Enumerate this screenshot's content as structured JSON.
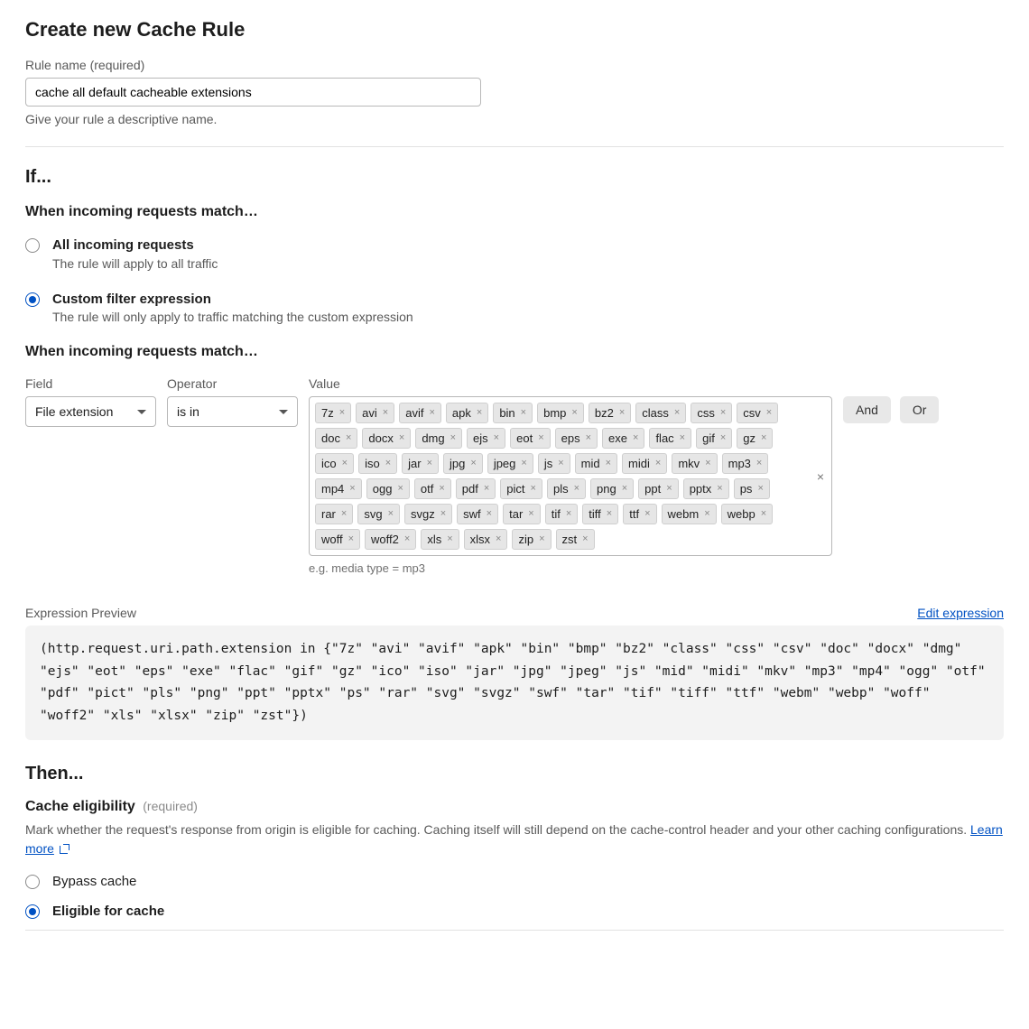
{
  "page": {
    "title": "Create new Cache Rule"
  },
  "rule_name": {
    "label": "Rule name (required)",
    "value": "cache all default cacheable extensions",
    "help": "Give your rule a descriptive name."
  },
  "if_section": {
    "title": "If...",
    "match_title": "When incoming requests match…",
    "options": {
      "all": {
        "label": "All incoming requests",
        "sub": "The rule will apply to all traffic",
        "checked": false
      },
      "custom": {
        "label": "Custom filter expression",
        "sub": "The rule will only apply to traffic matching the custom expression",
        "checked": true
      }
    }
  },
  "filter": {
    "match_title": "When incoming requests match…",
    "field_label": "Field",
    "operator_label": "Operator",
    "value_label": "Value",
    "field_value": "File extension",
    "operator_value": "is in",
    "tags": [
      "7z",
      "avi",
      "avif",
      "apk",
      "bin",
      "bmp",
      "bz2",
      "class",
      "css",
      "csv",
      "doc",
      "docx",
      "dmg",
      "ejs",
      "eot",
      "eps",
      "exe",
      "flac",
      "gif",
      "gz",
      "ico",
      "iso",
      "jar",
      "jpg",
      "jpeg",
      "js",
      "mid",
      "midi",
      "mkv",
      "mp3",
      "mp4",
      "ogg",
      "otf",
      "pdf",
      "pict",
      "pls",
      "png",
      "ppt",
      "pptx",
      "ps",
      "rar",
      "svg",
      "svgz",
      "swf",
      "tar",
      "tif",
      "tiff",
      "ttf",
      "webm",
      "webp",
      "woff",
      "woff2",
      "xls",
      "xlsx",
      "zip",
      "zst"
    ],
    "hint": "e.g. media type = mp3",
    "and_label": "And",
    "or_label": "Or"
  },
  "expression": {
    "label": "Expression Preview",
    "edit_label": "Edit expression",
    "text": "(http.request.uri.path.extension in {\"7z\" \"avi\" \"avif\" \"apk\" \"bin\" \"bmp\" \"bz2\" \"class\" \"css\" \"csv\" \"doc\" \"docx\" \"dmg\" \"ejs\" \"eot\" \"eps\" \"exe\" \"flac\" \"gif\" \"gz\" \"ico\" \"iso\" \"jar\" \"jpg\" \"jpeg\" \"js\" \"mid\" \"midi\" \"mkv\" \"mp3\" \"mp4\" \"ogg\" \"otf\" \"pdf\" \"pict\" \"pls\" \"png\" \"ppt\" \"pptx\" \"ps\" \"rar\" \"svg\" \"svgz\" \"swf\" \"tar\" \"tif\" \"tiff\" \"ttf\" \"webm\" \"webp\" \"woff\" \"woff2\" \"xls\" \"xlsx\" \"zip\" \"zst\"})"
  },
  "then": {
    "title": "Then...",
    "eligibility_title": "Cache eligibility",
    "required": "(required)",
    "desc_prefix": "Mark whether the request's response from origin is eligible for caching. Caching itself will still depend on the cache-control header and your other caching configurations. ",
    "learn_more": "Learn more",
    "bypass": {
      "label": "Bypass cache",
      "checked": false
    },
    "eligible": {
      "label": "Eligible for cache",
      "checked": true
    }
  }
}
